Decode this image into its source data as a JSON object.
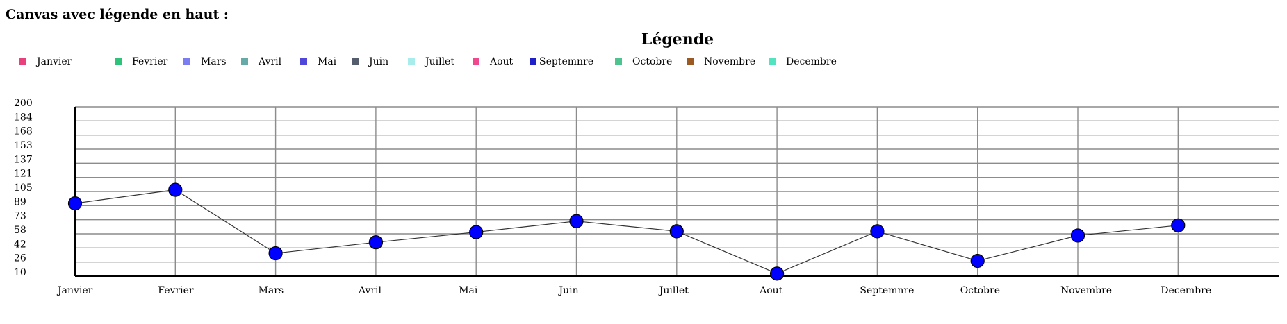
{
  "page": {
    "title": "Canvas avec légende en haut :"
  },
  "chart_data": {
    "type": "line",
    "title": "Légende",
    "categories": [
      "Janvier",
      "Fevrier",
      "Mars",
      "Avril",
      "Mai",
      "Juin",
      "Juillet",
      "Aout",
      "Septemnre",
      "Octobre",
      "Novembre",
      "Decembre"
    ],
    "series": [
      {
        "values": [
          86,
          102,
          27,
          40,
          52,
          65,
          53,
          3,
          53,
          18,
          48,
          60
        ]
      }
    ],
    "legend": {
      "placement": "top-left",
      "entries": [
        {
          "label": "Janvier",
          "color": "#e8407c"
        },
        {
          "label": "Fevrier",
          "color": "#2fc27a"
        },
        {
          "label": "Mars",
          "color": "#7b7cf0"
        },
        {
          "label": "Avril",
          "color": "#66aaa8"
        },
        {
          "label": "Mai",
          "color": "#4f47d9"
        },
        {
          "label": "Juin",
          "color": "#535d6b"
        },
        {
          "label": "Juillet",
          "color": "#a9ecec"
        },
        {
          "label": "Aout",
          "color": "#f0488f"
        },
        {
          "label": "Septemnre",
          "color": "#2020c8"
        },
        {
          "label": "Octobre",
          "color": "#4ec38e"
        },
        {
          "label": "Novembre",
          "color": "#9a5a22"
        },
        {
          "label": "Decembre",
          "color": "#52e4c0"
        }
      ]
    },
    "y_ticks": [
      "200",
      "184",
      "168",
      "153",
      "137",
      "121",
      "105",
      "89",
      "73",
      "58",
      "42",
      "26",
      "10"
    ],
    "ylim": [
      0,
      200
    ],
    "grid": true,
    "colors": {
      "point_fill": "#0000ff",
      "point_stroke": "#000000",
      "line": "#333333",
      "grid": "#8c8c8c",
      "axis": "#000000"
    }
  }
}
